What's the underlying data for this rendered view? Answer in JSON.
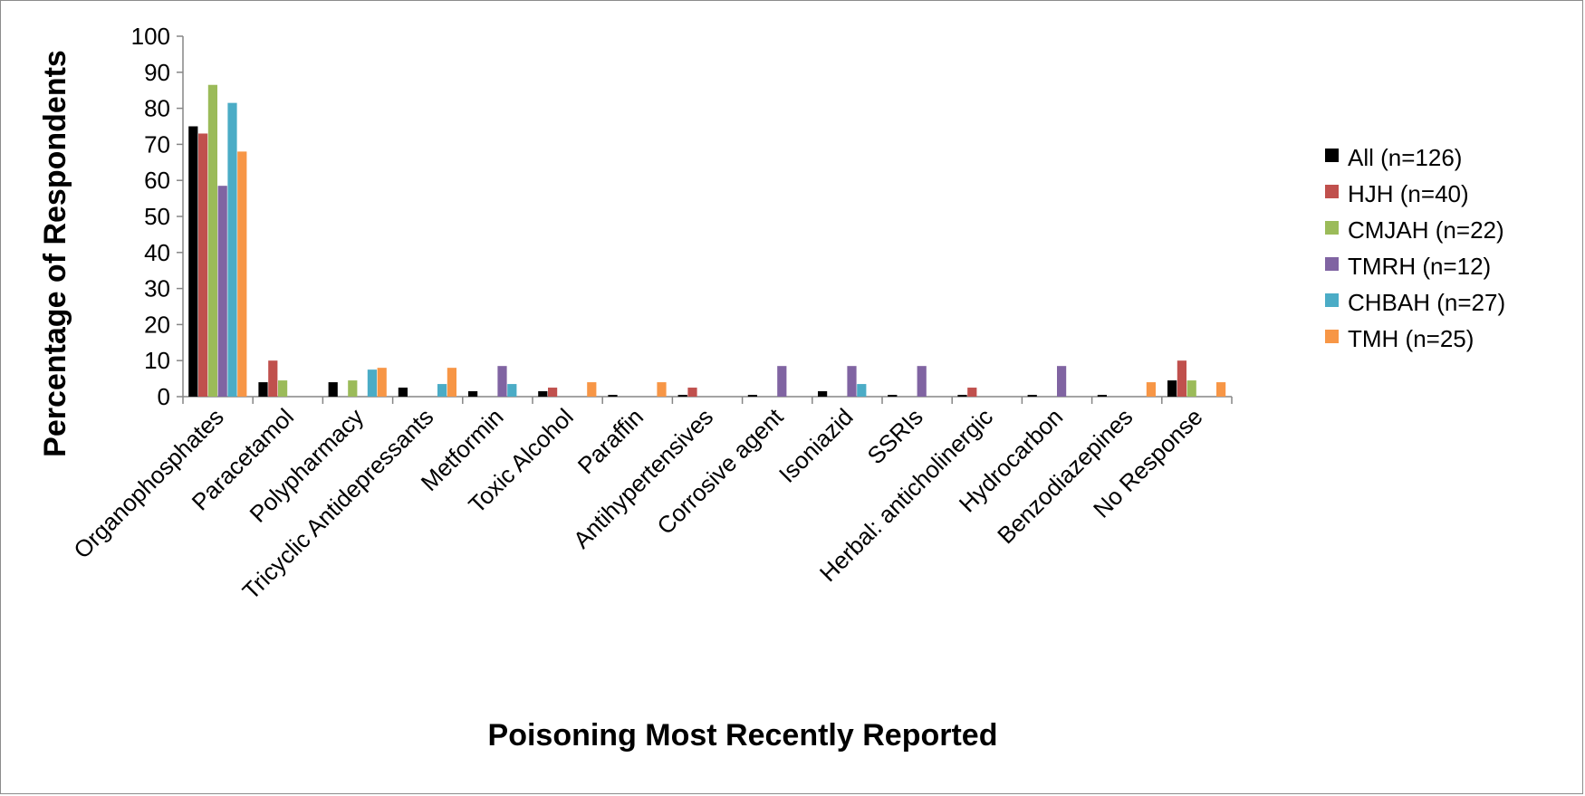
{
  "chart_data": {
    "type": "bar",
    "title": "",
    "xlabel": "Poisoning Most Recently Reported",
    "ylabel": "Percentage of Respondents",
    "ylim": [
      0,
      100
    ],
    "yticks": [
      "0",
      "10",
      "20",
      "30",
      "40",
      "50",
      "60",
      "70",
      "80",
      "90",
      "100"
    ],
    "grid": false,
    "legend_position": "right",
    "categories": [
      "Organophosphates",
      "Paracetamol",
      "Polypharmacy",
      "Tricyclic Antidepressants",
      "Metformin",
      "Toxic Alcohol",
      "Paraffin",
      "Antihypertensives",
      "Corrosive agent",
      "Isoniazid",
      "SSRIs",
      "Herbal: anticholinergic",
      "Hydrocarbon",
      "Benzodiazepines",
      "No Response"
    ],
    "series": [
      {
        "name": "All (n=126)",
        "color": "#000000",
        "values": [
          75,
          4,
          4,
          2.5,
          1.5,
          1.5,
          0.5,
          0.5,
          0.5,
          1.5,
          0.5,
          0.5,
          0.5,
          0.5,
          4.5
        ]
      },
      {
        "name": "HJH (n=40)",
        "color": "#c0504d",
        "values": [
          73,
          10,
          0,
          0,
          0,
          2.5,
          0,
          2.5,
          0,
          0,
          0,
          2.5,
          0,
          0,
          10
        ]
      },
      {
        "name": "CMJAH (n=22)",
        "color": "#9bbb59",
        "values": [
          86.5,
          4.5,
          4.5,
          0,
          0,
          0,
          0,
          0,
          0,
          0,
          0,
          0,
          0,
          0,
          4.5
        ]
      },
      {
        "name": "TMRH (n=12)",
        "color": "#8064a2",
        "values": [
          58.5,
          0,
          0,
          0,
          8.5,
          0,
          0,
          0,
          8.5,
          8.5,
          8.5,
          0,
          8.5,
          0,
          0
        ]
      },
      {
        "name": "CHBAH (n=27)",
        "color": "#4bacc6",
        "values": [
          81.5,
          0,
          7.5,
          3.5,
          3.5,
          0,
          0,
          0,
          0,
          3.5,
          0,
          0,
          0,
          0,
          0
        ]
      },
      {
        "name": "TMH (n=25)",
        "color": "#f79646",
        "values": [
          68,
          0,
          8,
          8,
          0,
          4,
          4,
          0,
          0,
          0,
          0,
          0,
          0,
          4,
          4
        ]
      }
    ]
  }
}
